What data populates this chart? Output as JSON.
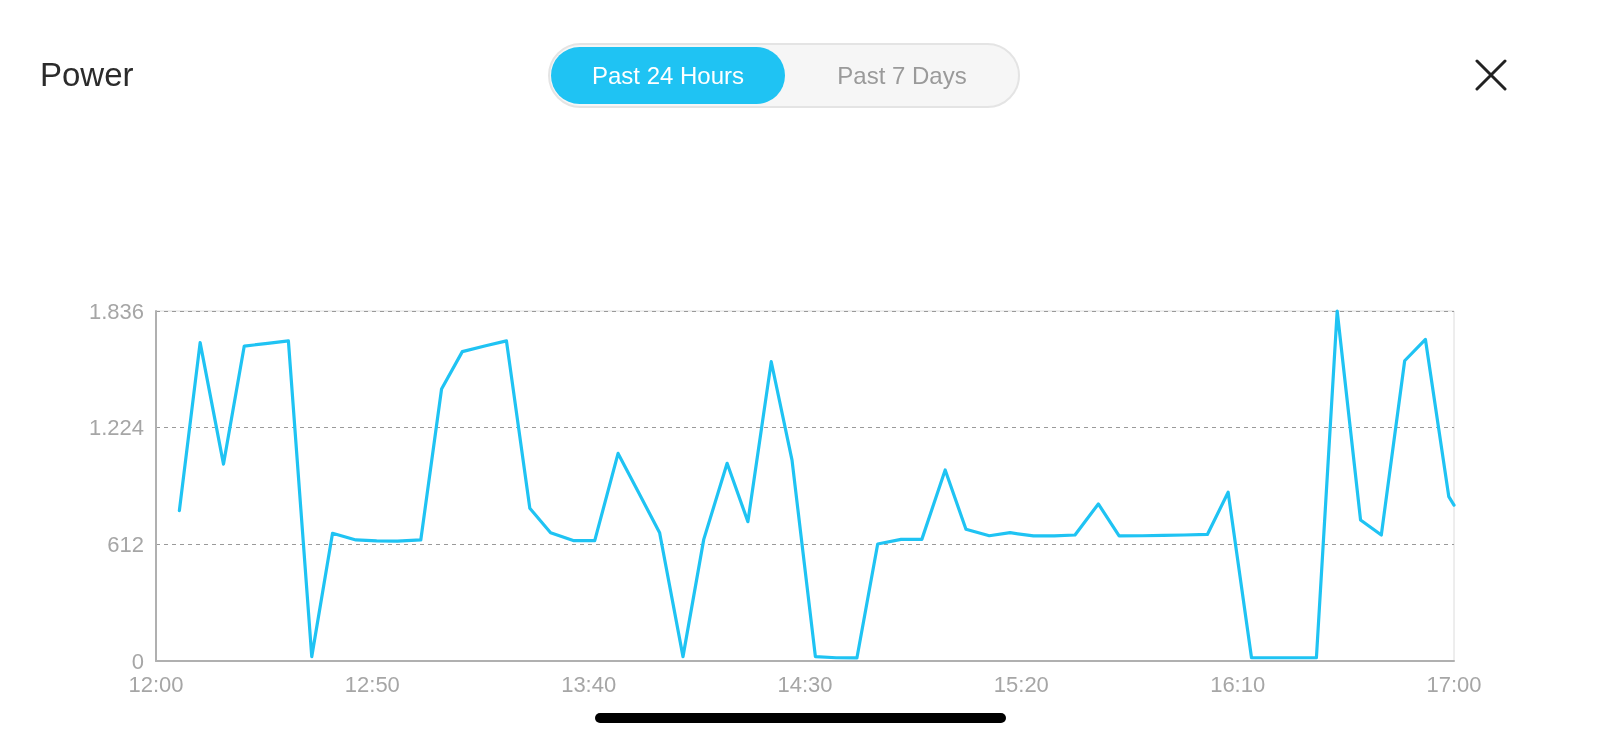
{
  "chart_data": {
    "type": "line",
    "title": "Power",
    "annotations": [
      "Past 24 Hours",
      "Past 7 Days"
    ],
    "x": [
      12.09,
      12.17,
      12.26,
      12.34,
      12.43,
      12.51,
      12.6,
      12.68,
      12.77,
      12.85,
      12.93,
      13.02,
      13.1,
      13.18,
      13.27,
      13.35,
      13.44,
      13.52,
      13.61,
      13.69,
      13.78,
      13.86,
      13.94,
      14.03,
      14.11,
      14.2,
      14.28,
      14.37,
      14.45,
      14.54,
      14.62,
      14.7,
      14.78,
      14.87,
      14.95,
      15.04,
      15.12,
      15.21,
      15.29,
      15.38,
      15.46,
      15.54,
      15.63,
      15.71,
      15.8,
      15.88,
      15.96,
      16.05,
      16.13,
      16.22,
      16.3,
      16.39,
      16.47,
      16.55,
      16.64,
      16.72,
      16.81,
      16.89,
      16.98,
      17.0
    ],
    "values": [
      789,
      1670,
      1033,
      1652,
      1666,
      1679,
      23,
      670,
      635,
      630,
      629,
      635,
      1427,
      1623,
      1654,
      1679,
      801,
      673,
      631,
      631,
      1089,
      881,
      673,
      23,
      638,
      1037,
      731,
      1570,
      1054,
      23,
      17,
      16,
      614,
      638,
      638,
      1002,
      691,
      657,
      673,
      656,
      656,
      661,
      824,
      656,
      657,
      659,
      661,
      664,
      885,
      17,
      17,
      17,
      17,
      1836,
      740,
      661,
      1575,
      1687,
      862,
      818
    ],
    "color": "#1fc3f3",
    "xlim": [
      12,
      17
    ],
    "xticks": [
      {
        "value": 12,
        "label": "12:00"
      },
      {
        "value": 12.8333,
        "label": "12:50"
      },
      {
        "value": 13.6667,
        "label": "13:40"
      },
      {
        "value": 14.5,
        "label": "14:30"
      },
      {
        "value": 15.3333,
        "label": "15:20"
      },
      {
        "value": 16.1667,
        "label": "16:10"
      },
      {
        "value": 17,
        "label": "17:00"
      }
    ],
    "ylim": [
      0,
      1836
    ],
    "yticks": [
      0,
      612,
      {
        "value": 1224,
        "label": "1.224"
      },
      {
        "value": 1836,
        "label": "1.836"
      }
    ],
    "grid": "y",
    "marker": "none",
    "line_style": "solid"
  }
}
